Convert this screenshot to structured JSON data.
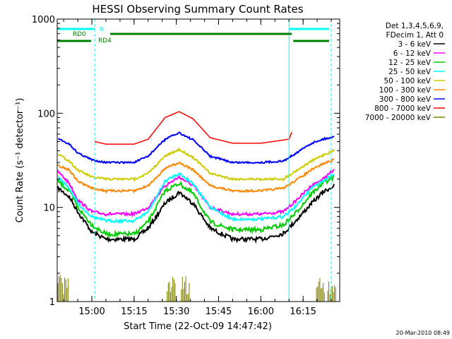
{
  "chart_data": {
    "type": "line",
    "title": "HESSI Observing Summary Count Rates",
    "xlabel": "Start Time (22-Oct-09 14:47:42)",
    "ylabel": "Count Rate (s⁻¹ detector⁻¹)",
    "y_scale": "log",
    "ylim": [
      1,
      1000
    ],
    "xlim": [
      "14:47:42",
      "16:28:00"
    ],
    "y_ticks": [
      {
        "value": 1,
        "label": "1"
      },
      {
        "value": 10,
        "label": "10"
      },
      {
        "value": 100,
        "label": "100"
      },
      {
        "value": 1000,
        "label": "1000"
      }
    ],
    "x_ticks": [
      {
        "time": "15:00",
        "label": "15:00"
      },
      {
        "time": "15:15",
        "label": "15:15"
      },
      {
        "time": "15:30",
        "label": "15:30"
      },
      {
        "time": "15:45",
        "label": "15:45"
      },
      {
        "time": "16:00",
        "label": "16:00"
      },
      {
        "time": "16:15",
        "label": "16:15"
      }
    ],
    "legend_header": [
      "Det 1,3,4,5,6,9,",
      "FDecim 1, Att 0"
    ],
    "legend_position": "right",
    "series": [
      {
        "name": "3 - 6 keV",
        "color": "#000000",
        "points": [
          [
            "14:48",
            16
          ],
          [
            "14:52",
            13
          ],
          [
            "14:55",
            9
          ],
          [
            "15:00",
            5.5
          ],
          [
            "15:05",
            4.6
          ],
          [
            "15:15",
            4.6
          ],
          [
            "15:20",
            6
          ],
          [
            "15:26",
            11
          ],
          [
            "15:31",
            14.5
          ],
          [
            "15:36",
            11
          ],
          [
            "15:42",
            6
          ],
          [
            "15:50",
            4.6
          ],
          [
            "16:00",
            4.6
          ],
          [
            "16:08",
            5.3
          ],
          [
            "16:12",
            7
          ],
          [
            "16:18",
            11
          ],
          [
            "16:22",
            14.5
          ],
          [
            "16:26",
            17
          ]
        ]
      },
      {
        "name": "6 - 12 keV",
        "color": "#ff00ff",
        "points": [
          [
            "14:48",
            24
          ],
          [
            "14:52",
            18
          ],
          [
            "14:55",
            12
          ],
          [
            "15:00",
            9
          ],
          [
            "15:05",
            8.5
          ],
          [
            "15:15",
            8.5
          ],
          [
            "15:20",
            10
          ],
          [
            "15:26",
            17
          ],
          [
            "15:31",
            21
          ],
          [
            "15:36",
            17
          ],
          [
            "15:42",
            10
          ],
          [
            "15:50",
            8.5
          ],
          [
            "16:00",
            8.5
          ],
          [
            "16:08",
            9
          ],
          [
            "16:12",
            11.5
          ],
          [
            "16:18",
            17
          ],
          [
            "16:22",
            20
          ],
          [
            "16:26",
            25
          ]
        ]
      },
      {
        "name": "12 - 25 keV",
        "color": "#00cc00",
        "points": [
          [
            "14:48",
            19
          ],
          [
            "14:52",
            15
          ],
          [
            "14:55",
            10
          ],
          [
            "15:00",
            6.5
          ],
          [
            "15:05",
            5.2
          ],
          [
            "15:15",
            5.2
          ],
          [
            "15:20",
            7
          ],
          [
            "15:26",
            15
          ],
          [
            "15:31",
            18
          ],
          [
            "15:36",
            14
          ],
          [
            "15:42",
            7
          ],
          [
            "15:50",
            5.8
          ],
          [
            "16:00",
            5.8
          ],
          [
            "16:08",
            6.5
          ],
          [
            "16:12",
            8.5
          ],
          [
            "16:18",
            14
          ],
          [
            "16:22",
            18
          ],
          [
            "16:26",
            21
          ]
        ]
      },
      {
        "name": "25 - 50 keV",
        "color": "#00ffff",
        "points": [
          [
            "14:48",
            21
          ],
          [
            "14:52",
            16
          ],
          [
            "14:55",
            11
          ],
          [
            "15:00",
            8
          ],
          [
            "15:05",
            7.2
          ],
          [
            "15:15",
            7.2
          ],
          [
            "15:20",
            9
          ],
          [
            "15:26",
            19
          ],
          [
            "15:31",
            23
          ],
          [
            "15:36",
            18
          ],
          [
            "15:42",
            10
          ],
          [
            "15:50",
            7.5
          ],
          [
            "16:00",
            7.5
          ],
          [
            "16:08",
            8
          ],
          [
            "16:12",
            10
          ],
          [
            "16:18",
            16
          ],
          [
            "16:22",
            19
          ],
          [
            "16:26",
            23
          ]
        ]
      },
      {
        "name": "50 - 100 keV",
        "color": "#cccc00",
        "points": [
          [
            "14:48",
            37
          ],
          [
            "14:52",
            31
          ],
          [
            "14:55",
            25
          ],
          [
            "15:00",
            21
          ],
          [
            "15:05",
            20
          ],
          [
            "15:15",
            20
          ],
          [
            "15:20",
            23
          ],
          [
            "15:26",
            35
          ],
          [
            "15:31",
            41
          ],
          [
            "15:36",
            34
          ],
          [
            "15:42",
            23
          ],
          [
            "15:50",
            20
          ],
          [
            "16:00",
            20
          ],
          [
            "16:08",
            20
          ],
          [
            "16:12",
            24
          ],
          [
            "16:18",
            31
          ],
          [
            "16:22",
            36
          ],
          [
            "16:26",
            40
          ]
        ]
      },
      {
        "name": "100 - 300 keV",
        "color": "#ff8800",
        "points": [
          [
            "14:48",
            28
          ],
          [
            "14:52",
            25
          ],
          [
            "14:55",
            19
          ],
          [
            "15:00",
            16
          ],
          [
            "15:05",
            15
          ],
          [
            "15:15",
            15
          ],
          [
            "15:20",
            17
          ],
          [
            "15:26",
            26
          ],
          [
            "15:31",
            30
          ],
          [
            "15:36",
            25
          ],
          [
            "15:42",
            17
          ],
          [
            "15:50",
            15
          ],
          [
            "16:00",
            15
          ],
          [
            "16:08",
            16
          ],
          [
            "16:12",
            19
          ],
          [
            "16:18",
            25
          ],
          [
            "16:22",
            29
          ],
          [
            "16:26",
            32
          ]
        ]
      },
      {
        "name": "300 - 800 keV",
        "color": "#0000ff",
        "points": [
          [
            "14:48",
            54
          ],
          [
            "14:52",
            47
          ],
          [
            "14:55",
            38
          ],
          [
            "15:00",
            32
          ],
          [
            "15:05",
            30
          ],
          [
            "15:15",
            30
          ],
          [
            "15:20",
            35
          ],
          [
            "15:26",
            53
          ],
          [
            "15:31",
            62
          ],
          [
            "15:36",
            52
          ],
          [
            "15:42",
            35
          ],
          [
            "15:50",
            30
          ],
          [
            "16:00",
            30
          ],
          [
            "16:08",
            31
          ],
          [
            "16:12",
            37
          ],
          [
            "16:18",
            48
          ],
          [
            "16:22",
            53
          ],
          [
            "16:26",
            56
          ]
        ]
      },
      {
        "name": "800 - 7000 keV",
        "color": "#ff0000",
        "points": [
          [
            "15:01",
            50
          ],
          [
            "15:05",
            47
          ],
          [
            "15:15",
            47
          ],
          [
            "15:20",
            53
          ],
          [
            "15:26",
            90
          ],
          [
            "15:31",
            104
          ],
          [
            "15:36",
            87
          ],
          [
            "15:42",
            55
          ],
          [
            "15:50",
            48
          ],
          [
            "16:00",
            48
          ],
          [
            "16:10",
            53
          ],
          [
            "16:11",
            63
          ]
        ]
      },
      {
        "name": "7000 - 20000 keV",
        "color": "#808000",
        "points": [
          [
            "14:48",
            2
          ],
          [
            "14:50",
            1.5
          ],
          [
            "15:28",
            1.8
          ],
          [
            "15:33",
            2
          ],
          [
            "16:21",
            2
          ],
          [
            "16:25",
            2.1
          ]
        ]
      }
    ]
  },
  "annotations": {
    "n_label": "N",
    "rd0_label": "RD0",
    "rd4_label": "RD4"
  },
  "timestamp": "20-Mar-2010 08:49"
}
